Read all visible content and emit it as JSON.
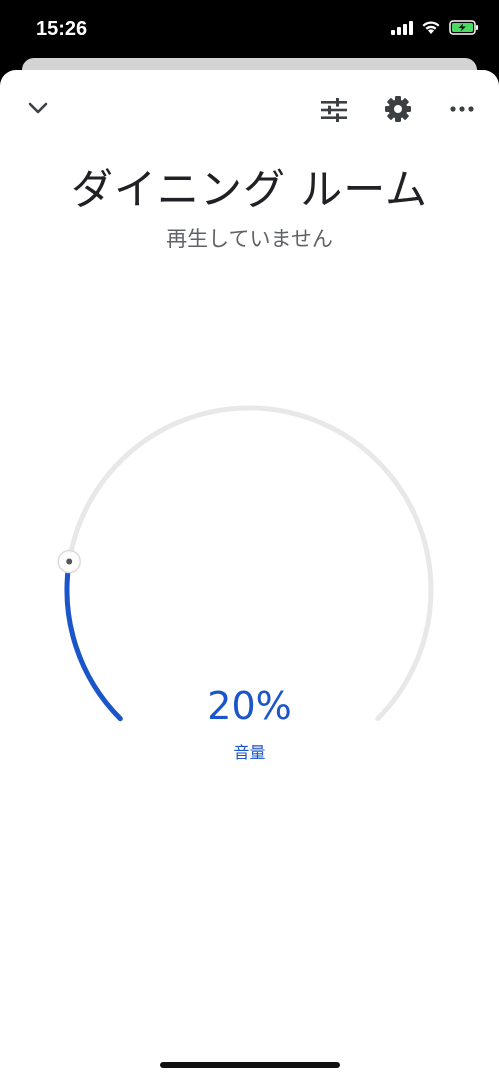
{
  "status_bar": {
    "time": "15:26",
    "icons": [
      "signal-icon",
      "wifi-icon",
      "battery-charging-icon"
    ]
  },
  "header": {
    "collapse_icon": "chevron-down-icon",
    "equalizer_icon": "tune-icon",
    "settings_icon": "gear-icon",
    "more_icon": "more-horiz-icon"
  },
  "device": {
    "name": "ダイニング ルーム",
    "status": "再生していません"
  },
  "volume": {
    "value_text": "20%",
    "label": "音量",
    "level": 0.2,
    "colors": {
      "active": "#1a56c9",
      "track": "#e8e8e8"
    }
  }
}
